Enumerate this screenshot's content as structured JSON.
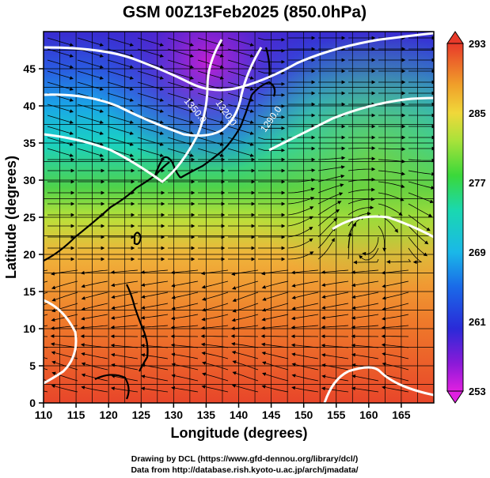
{
  "title": "GSM 00Z13Feb2025 (850.0hPa)",
  "xlabel": "Longitude (degrees)",
  "ylabel": "Latitude  (degrees)",
  "x_ticks": [
    "110",
    "115",
    "120",
    "125",
    "130",
    "135",
    "140",
    "145",
    "150",
    "155",
    "160",
    "165"
  ],
  "y_ticks": [
    "0",
    "5",
    "10",
    "15",
    "20",
    "25",
    "30",
    "35",
    "40",
    "45"
  ],
  "colorbar_ticks": [
    "293",
    "285",
    "277",
    "269",
    "261",
    "253"
  ],
  "contour_labels": [
    "1350.0",
    "1320.0",
    "1290.0"
  ],
  "footer": {
    "line1": "Drawing by DCL (https://www.gfd-dennou.org/library/dcl/)",
    "line2": "Data from http://database.rish.kyoto-u.ac.jp/arch/jmadata/"
  },
  "map": {
    "lon_range": [
      110,
      170
    ],
    "lat_range": [
      0,
      50
    ],
    "colorbar_range": [
      253,
      293
    ],
    "variable": "temperature",
    "contour_interval_gph": 30
  },
  "colors": {
    "warm": "#e8522a",
    "mid": "#8ee23a",
    "cool": "#1aa6e8",
    "cold": "#3a2ad0",
    "coldest": "#c81cd2",
    "contour": "#ffffff",
    "coast": "#000000"
  }
}
